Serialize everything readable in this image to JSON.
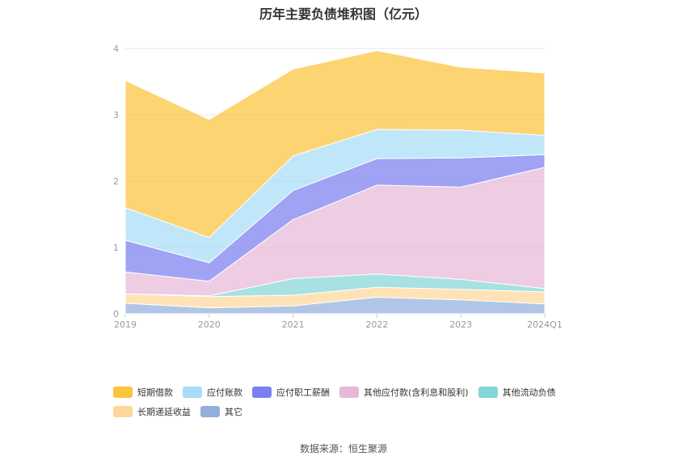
{
  "chart_data": {
    "type": "area",
    "title": "历年主要负债堆积图（亿元）",
    "categories": [
      "2019",
      "2020",
      "2021",
      "2022",
      "2023",
      "2024Q1"
    ],
    "yticks": [
      "0",
      "1",
      "2",
      "3",
      "4"
    ],
    "ylim": [
      0,
      4
    ],
    "stacked": true,
    "grid": true,
    "legend_position": "bottom",
    "series": [
      {
        "name": "其它",
        "color": "#93b0dc",
        "values": [
          0.16,
          0.09,
          0.12,
          0.25,
          0.21,
          0.15
        ]
      },
      {
        "name": "长期递延收益",
        "color": "#ffd79a",
        "values": [
          0.14,
          0.17,
          0.16,
          0.15,
          0.16,
          0.18
        ]
      },
      {
        "name": "其他流动负债",
        "color": "#85d6d6",
        "values": [
          0.0,
          0.01,
          0.25,
          0.2,
          0.15,
          0.05
        ]
      },
      {
        "name": "其他应付款(含利息和股利)",
        "color": "#e8b8d8",
        "values": [
          0.33,
          0.22,
          0.89,
          1.34,
          1.39,
          1.83
        ]
      },
      {
        "name": "应付职工薪酬",
        "color": "#7b7ff0",
        "values": [
          0.48,
          0.28,
          0.44,
          0.4,
          0.44,
          0.19
        ]
      },
      {
        "name": "应付账款",
        "color": "#a8dcf8",
        "values": [
          0.49,
          0.38,
          0.52,
          0.44,
          0.42,
          0.29
        ]
      },
      {
        "name": "短期借款",
        "color": "#fcc43c",
        "values": [
          1.92,
          1.78,
          1.31,
          1.19,
          0.95,
          0.94
        ]
      }
    ],
    "source": "数据来源：恒生聚源"
  },
  "legend_rows": [
    [
      {
        "name": "短期借款",
        "color": "#fcc43c"
      },
      {
        "name": "应付账款",
        "color": "#a8dcf8"
      },
      {
        "name": "应付职工薪酬",
        "color": "#7b7ff0"
      },
      {
        "name": "其他应付款(含利息和股利)",
        "color": "#e8b8d8"
      },
      {
        "name": "其他流动负债",
        "color": "#85d6d6"
      }
    ],
    [
      {
        "name": "长期递延收益",
        "color": "#ffd79a"
      },
      {
        "name": "其它",
        "color": "#93b0dc"
      }
    ]
  ]
}
